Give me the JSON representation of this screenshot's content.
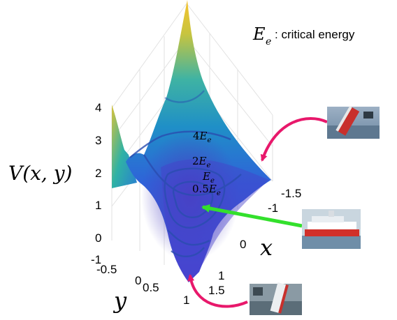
{
  "legend": {
    "symbol": "E",
    "subscript": "e",
    "text": ": critical energy"
  },
  "axes": {
    "z_label": "V(x, y)",
    "x_label": "x",
    "y_label": "y",
    "z_ticks": [
      "4",
      "3",
      "2",
      "1",
      "0"
    ],
    "x_ticks": [
      "-1.5",
      "-1",
      "0",
      "1",
      "1.5"
    ],
    "y_ticks": [
      "-1",
      "-0.5",
      "0",
      "0.5",
      "1"
    ]
  },
  "contours": [
    {
      "coef": "4",
      "sym": "E",
      "sub": "e"
    },
    {
      "coef": "2",
      "sym": "E",
      "sub": "e"
    },
    {
      "coef": "",
      "sym": "E",
      "sub": "e"
    },
    {
      "coef": "0.5",
      "sym": "E",
      "sub": "e"
    }
  ],
  "photos": [
    {
      "name": "capsized-ship-photo-top",
      "state": "capsized"
    },
    {
      "name": "upright-ship-photo",
      "state": "upright"
    },
    {
      "name": "capsized-ship-photo-bottom",
      "state": "capsized"
    }
  ],
  "colors": {
    "arrow_capsize": "#e8186b",
    "arrow_upright": "#33e02c",
    "surface_low": "#3a4fd8",
    "surface_mid": "#1f9fb4",
    "surface_high": "#f4c430"
  }
}
